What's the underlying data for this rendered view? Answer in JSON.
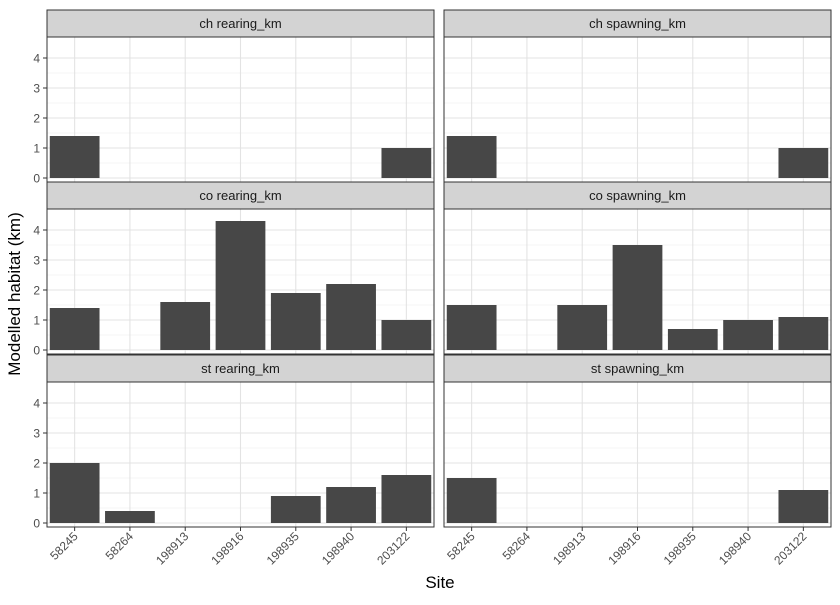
{
  "chart_data": {
    "type": "bar",
    "layout": "facet grid, 3 rows x 2 columns",
    "grid": true,
    "bar_color": "#474747",
    "strip_color": "#d3d3d3",
    "xlabel": "Site",
    "ylabel": "Modelled habitat (km)",
    "categories": [
      "58245",
      "58264",
      "198913",
      "198916",
      "198935",
      "198940",
      "203122"
    ],
    "yticks": [
      "0",
      "1",
      "2",
      "3",
      "4"
    ],
    "ylim": [
      0,
      4.5
    ],
    "panels": [
      {
        "label": "ch rearing_km",
        "values": [
          1.4,
          0,
          0,
          0,
          0,
          0,
          1.0
        ]
      },
      {
        "label": "ch spawning_km",
        "values": [
          1.4,
          0,
          0,
          0,
          0,
          0,
          1.0
        ]
      },
      {
        "label": "co rearing_km",
        "values": [
          1.4,
          0,
          1.6,
          4.3,
          1.9,
          2.2,
          1.0
        ]
      },
      {
        "label": "co spawning_km",
        "values": [
          1.5,
          0,
          1.5,
          3.5,
          0.7,
          1.0,
          1.1
        ]
      },
      {
        "label": "st rearing_km",
        "values": [
          2.0,
          0.4,
          0,
          0,
          0.9,
          1.2,
          1.6
        ]
      },
      {
        "label": "st spawning_km",
        "values": [
          1.5,
          0,
          0,
          0,
          0,
          0,
          1.1
        ]
      }
    ]
  }
}
